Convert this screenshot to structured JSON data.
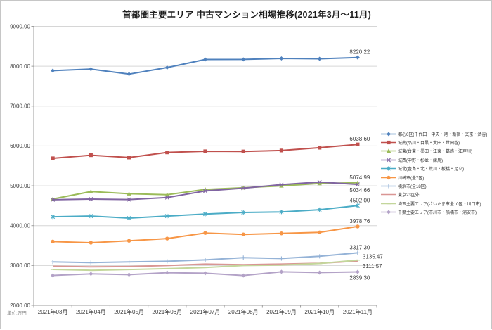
{
  "chart_data": {
    "type": "line",
    "title": "首都圏主要エリア 中古マンション相場推移(2021年3月〜11月)",
    "unit_note": "単位:万円",
    "x_categories": [
      "2021年03月",
      "2021年04月",
      "2021年05月",
      "2021年06月",
      "2021年07月",
      "2021年08月",
      "2021年09月",
      "2021年10月",
      "2021年11月"
    ],
    "y_axis": {
      "min": 2000,
      "max": 9000,
      "step": 1000
    },
    "y_tick_labels": [
      "9000.00",
      "8000.00",
      "7000.00",
      "6000.00",
      "5000.00",
      "4000.00",
      "3000.00",
      "2000.00"
    ],
    "grid": true,
    "legend_position": "right",
    "series": [
      {
        "name": "都心6区(千代田・中央・港・新宿・文京・渋谷)",
        "color": "#4F81BD",
        "marker": "diamond",
        "label_pos": "above",
        "end_label": "8220.22",
        "values": [
          7890,
          7928,
          7803,
          7968,
          8170,
          8172,
          8196,
          8188,
          8220.22
        ]
      },
      {
        "name": "城南(品川・目黒・大田・世田谷)",
        "color": "#C0504D",
        "marker": "square",
        "label_pos": "above",
        "end_label": "6038.60",
        "values": [
          5690,
          5768,
          5710,
          5838,
          5866,
          5862,
          5886,
          5956,
          6038.6
        ]
      },
      {
        "name": "城東(台東・墨田・江東・葛飾・江戸川)",
        "color": "#9BBB59",
        "marker": "triangle",
        "label_pos": "above",
        "end_label": "5074.99",
        "values": [
          4668,
          4855,
          4800,
          4775,
          4910,
          4950,
          5000,
          5058,
          5074.99
        ]
      },
      {
        "name": "城西(中野・杉並・練馬)",
        "color": "#8064A2",
        "marker": "x",
        "label_pos": "below",
        "end_label": "5034.66",
        "values": [
          4650,
          4665,
          4655,
          4705,
          4870,
          4940,
          5030,
          5094,
          5034.66
        ]
      },
      {
        "name": "城北(豊島・北・荒川・板橋・足立)",
        "color": "#4BACC6",
        "marker": "star",
        "label_pos": "above",
        "end_label": "4502.00",
        "values": [
          4222,
          4240,
          4190,
          4240,
          4290,
          4330,
          4345,
          4400,
          4502.0
        ]
      },
      {
        "name": "川崎市(全7区)",
        "color": "#F79646",
        "marker": "circle",
        "label_pos": "above",
        "end_label": "3978.76",
        "values": [
          3600,
          3572,
          3620,
          3675,
          3815,
          3780,
          3805,
          3830,
          3978.76
        ]
      },
      {
        "name": "横浜市(全18区)",
        "color": "#95B3D7",
        "marker": "plus",
        "label_pos": "above",
        "end_label": "3317.30",
        "values": [
          3090,
          3072,
          3090,
          3105,
          3140,
          3195,
          3175,
          3230,
          3317.3
        ]
      },
      {
        "name": "東京23区外",
        "color": "#D99694",
        "marker": "none",
        "label_pos": "right-below",
        "end_label": "3111.57",
        "values": [
          2980,
          2965,
          2972,
          3000,
          3035,
          3020,
          3035,
          3055,
          3111.57
        ]
      },
      {
        "name": "埼玉主要エリア(さいたま市全10区・川口市)",
        "color": "#C3D69B",
        "marker": "dash",
        "label_pos": "right-above",
        "end_label": "3135.47",
        "values": [
          2900,
          2880,
          2898,
          2920,
          2950,
          3000,
          3010,
          3050,
          3135.47
        ]
      },
      {
        "name": "千葉主要エリア(市川市・船橋市・浦安市)",
        "color": "#B3A2C7",
        "marker": "diamond",
        "label_pos": "below",
        "end_label": "2839.30",
        "values": [
          2750,
          2790,
          2770,
          2820,
          2805,
          2748,
          2840,
          2822,
          2839.3
        ]
      }
    ]
  }
}
